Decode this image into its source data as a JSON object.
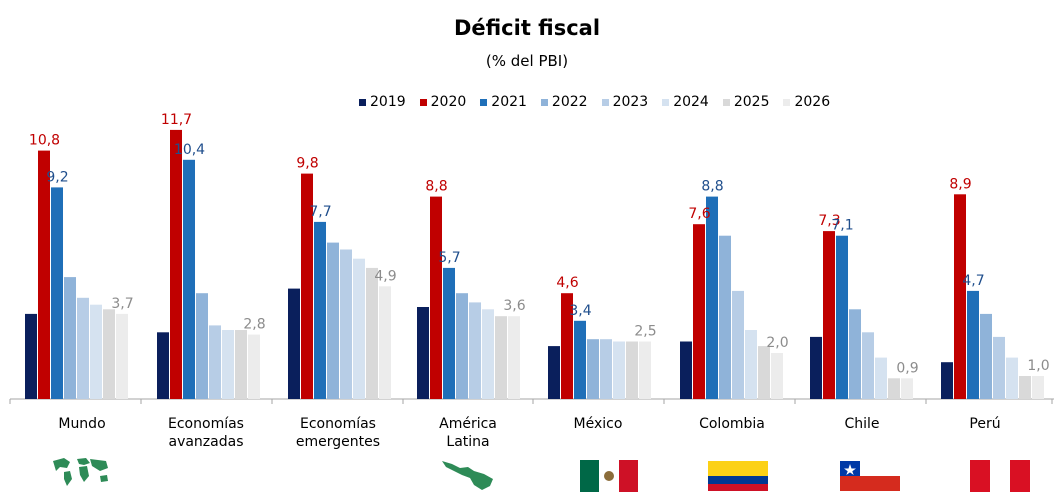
{
  "chart_data": {
    "type": "bar",
    "title": "Déficit fiscal",
    "subtitle": "(% del PBI)",
    "legend_position": "top",
    "grid": false,
    "ylim": [
      0,
      13
    ],
    "categories": [
      {
        "label": "Mundo",
        "lines": [
          "Mundo"
        ]
      },
      {
        "label": "Economías avanzadas",
        "lines": [
          "Economías",
          "avanzadas"
        ]
      },
      {
        "label": "Economías emergentes",
        "lines": [
          "Economías",
          "emergentes"
        ]
      },
      {
        "label": "América Latina",
        "lines": [
          "América",
          "Latina"
        ]
      },
      {
        "label": "México",
        "lines": [
          "México"
        ]
      },
      {
        "label": "Colombia",
        "lines": [
          "Colombia"
        ]
      },
      {
        "label": "Chile",
        "lines": [
          "Chile"
        ]
      },
      {
        "label": "Perú",
        "lines": [
          "Perú"
        ]
      }
    ],
    "series": [
      {
        "name": "2019",
        "color": "#0a1f5c",
        "values": [
          3.7,
          2.9,
          4.8,
          4.0,
          2.3,
          2.5,
          2.7,
          1.6
        ]
      },
      {
        "name": "2020",
        "color": "#c00000",
        "values": [
          10.8,
          11.7,
          9.8,
          8.8,
          4.6,
          7.6,
          7.3,
          8.9
        ]
      },
      {
        "name": "2021",
        "color": "#1f6fb8",
        "values": [
          9.2,
          10.4,
          7.7,
          5.7,
          3.4,
          8.8,
          7.1,
          4.7
        ]
      },
      {
        "name": "2022",
        "color": "#8fb3d9",
        "values": [
          5.3,
          4.6,
          6.8,
          4.6,
          2.6,
          7.1,
          3.9,
          3.7
        ]
      },
      {
        "name": "2023",
        "color": "#b7cde6",
        "values": [
          4.4,
          3.2,
          6.5,
          4.2,
          2.6,
          4.7,
          2.9,
          2.7
        ]
      },
      {
        "name": "2024",
        "color": "#d5e2f0",
        "values": [
          4.1,
          3.0,
          6.1,
          3.9,
          2.5,
          3.0,
          1.8,
          1.8
        ]
      },
      {
        "name": "2025",
        "color": "#d9d9d9",
        "values": [
          3.9,
          3.0,
          5.7,
          3.6,
          2.5,
          2.3,
          0.9,
          1.0
        ]
      },
      {
        "name": "2026",
        "color": "#ececec",
        "values": [
          3.7,
          2.8,
          4.9,
          3.6,
          2.5,
          2.0,
          0.9,
          1.0
        ]
      }
    ],
    "data_labels": [
      {
        "category": 0,
        "series": 1,
        "text": "10,8",
        "color": "#c00000"
      },
      {
        "category": 0,
        "series": 2,
        "text": "9,2",
        "color": "#1f4e8c"
      },
      {
        "category": 0,
        "series": 7,
        "text": "3,7",
        "color": "#8c8c8c"
      },
      {
        "category": 1,
        "series": 1,
        "text": "11,7",
        "color": "#c00000"
      },
      {
        "category": 1,
        "series": 2,
        "text": "10,4",
        "color": "#1f4e8c"
      },
      {
        "category": 1,
        "series": 7,
        "text": "2,8",
        "color": "#8c8c8c"
      },
      {
        "category": 2,
        "series": 1,
        "text": "9,8",
        "color": "#c00000"
      },
      {
        "category": 2,
        "series": 2,
        "text": "7,7",
        "color": "#1f4e8c"
      },
      {
        "category": 2,
        "series": 7,
        "text": "4,9",
        "color": "#8c8c8c"
      },
      {
        "category": 3,
        "series": 1,
        "text": "8,8",
        "color": "#c00000"
      },
      {
        "category": 3,
        "series": 2,
        "text": "5,7",
        "color": "#1f4e8c"
      },
      {
        "category": 3,
        "series": 7,
        "text": "3,6",
        "color": "#8c8c8c"
      },
      {
        "category": 4,
        "series": 1,
        "text": "4,6",
        "color": "#c00000"
      },
      {
        "category": 4,
        "series": 2,
        "text": "3,4",
        "color": "#1f4e8c"
      },
      {
        "category": 4,
        "series": 7,
        "text": "2,5",
        "color": "#8c8c8c"
      },
      {
        "category": 5,
        "series": 1,
        "text": "7,6",
        "color": "#c00000"
      },
      {
        "category": 5,
        "series": 2,
        "text": "8,8",
        "color": "#1f4e8c"
      },
      {
        "category": 5,
        "series": 7,
        "text": "2,0",
        "color": "#8c8c8c"
      },
      {
        "category": 6,
        "series": 1,
        "text": "7,3",
        "color": "#c00000"
      },
      {
        "category": 6,
        "series": 2,
        "text": "7,1",
        "color": "#1f4e8c"
      },
      {
        "category": 6,
        "series": 7,
        "text": "0,9",
        "color": "#8c8c8c"
      },
      {
        "category": 7,
        "series": 1,
        "text": "8,9",
        "color": "#c00000"
      },
      {
        "category": 7,
        "series": 2,
        "text": "4,7",
        "color": "#1f4e8c"
      },
      {
        "category": 7,
        "series": 7,
        "text": "1,0",
        "color": "#8c8c8c"
      }
    ]
  },
  "icons": [
    {
      "category": "Mundo",
      "name": "world-map-icon"
    },
    {
      "category": "América Latina",
      "name": "latin-america-map-icon"
    },
    {
      "category": "México",
      "name": "mexico-flag-icon"
    },
    {
      "category": "Colombia",
      "name": "colombia-flag-icon"
    },
    {
      "category": "Chile",
      "name": "chile-flag-icon"
    },
    {
      "category": "Perú",
      "name": "peru-flag-icon"
    }
  ],
  "colors": {
    "mexico": [
      "#006847",
      "#ffffff",
      "#ce1126"
    ],
    "colombia": [
      "#fcd116",
      "#003893",
      "#ce1126"
    ],
    "chile": [
      "#0039a6",
      "#ffffff",
      "#d52b1e"
    ],
    "peru": [
      "#d91023",
      "#ffffff",
      "#d91023"
    ],
    "map": "#2e8b57"
  }
}
